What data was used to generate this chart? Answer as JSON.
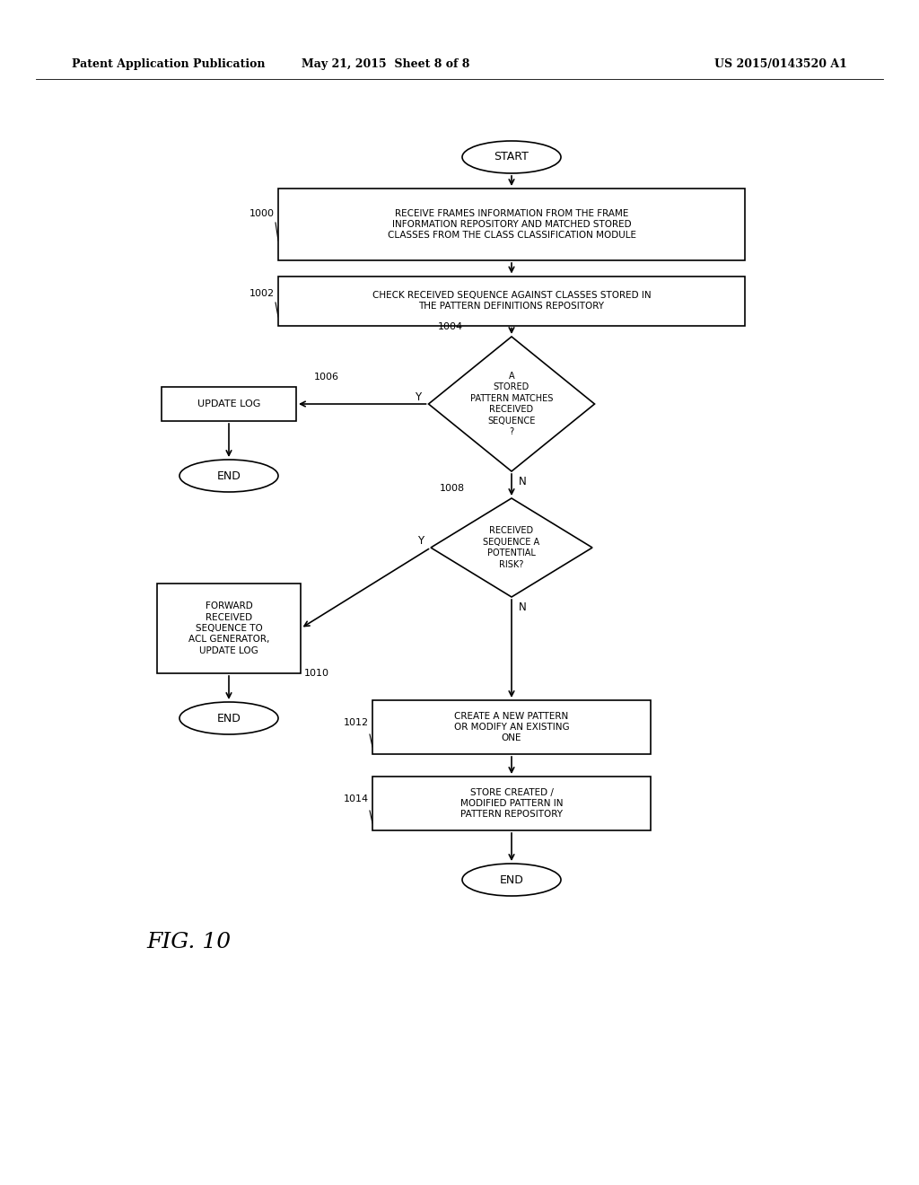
{
  "bg_color": "#ffffff",
  "header_left": "Patent Application Publication",
  "header_mid": "May 21, 2015  Sheet 8 of 8",
  "header_right": "US 2015/0143520 A1",
  "fig_label": "FIG. 10",
  "text_fontsize": 7.0,
  "label_fontsize": 8.0,
  "header_fontsize": 9.0
}
